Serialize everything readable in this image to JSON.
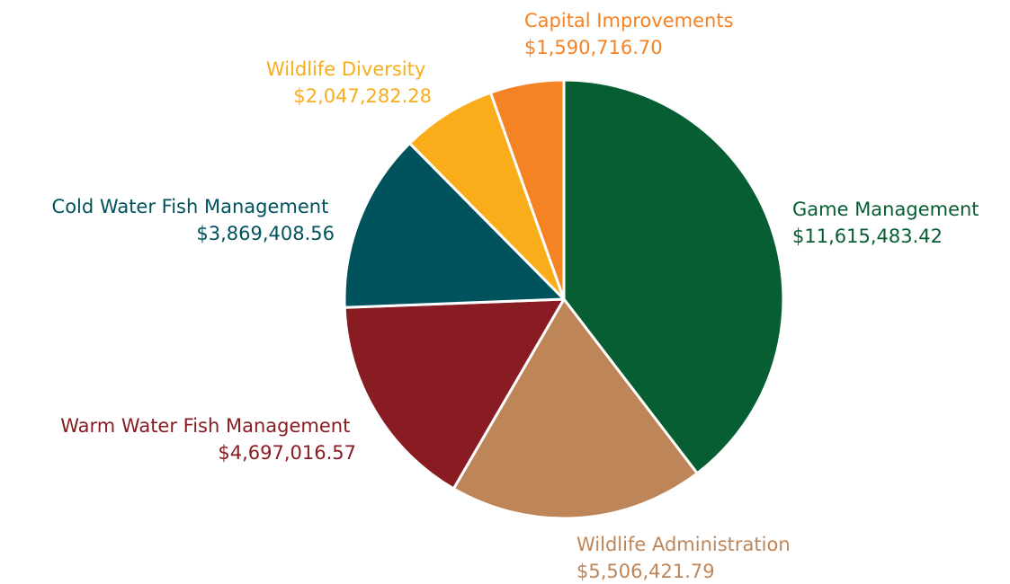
{
  "chart_data": {
    "type": "pie",
    "title": "",
    "slices": [
      {
        "label": "Game Management",
        "value_text": "$11,615,483.42",
        "value": 11615483.42,
        "color": "#065e32"
      },
      {
        "label": "Wildlife Administration",
        "value_text": "$5,506,421.79",
        "value": 5506421.79,
        "color": "#be8558"
      },
      {
        "label": "Warm Water Fish Management",
        "value_text": "$4,697,016.57",
        "value": 4697016.57,
        "color": "#891c23"
      },
      {
        "label": "Cold Water Fish Management",
        "value_text": "$3,869,408.56",
        "value": 3869408.56,
        "color": "#00525d"
      },
      {
        "label": "Wildlife Diversity",
        "value_text": "$2,047,282.28",
        "value": 2047282.28,
        "color": "#f9ad1b"
      },
      {
        "label": "Capital Improvements",
        "value_text": "$1,590,716.70",
        "value": 1590716.7,
        "color": "#f58223"
      }
    ],
    "legend": "none",
    "start_angle": "12 o'clock",
    "direction": "clockwise"
  }
}
